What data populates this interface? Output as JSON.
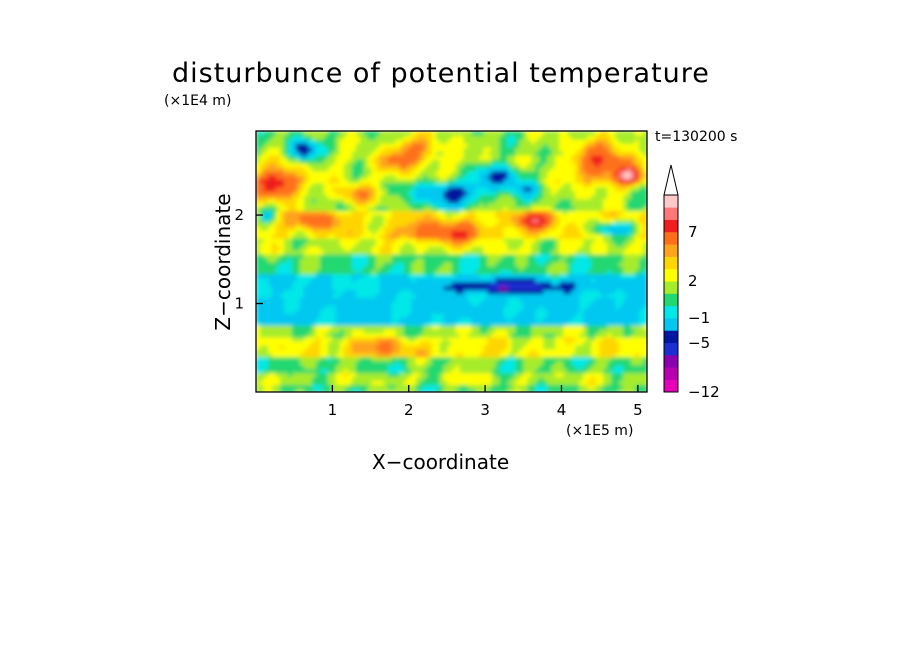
{
  "chart_data": {
    "type": "heatmap",
    "title": "disturbunce of potential temperature",
    "xlabel": "X−coordinate",
    "ylabel": "Z−coordinate",
    "x_unit": "(×1E5 m)",
    "y_unit": "(×1E4 m)",
    "time_label": "t=130200 s",
    "xlim": [
      0,
      5.12
    ],
    "ylim": [
      0,
      2.95
    ],
    "x_ticks": [
      1,
      2,
      3,
      4,
      5
    ],
    "x_tick_labels": [
      "1",
      "2",
      "3",
      "4",
      "5"
    ],
    "y_ticks": [
      1,
      2
    ],
    "y_tick_labels": [
      "1",
      "2"
    ],
    "colorbar": {
      "levels": [
        -12,
        -11,
        -9,
        -7,
        -5,
        -3,
        -1,
        0,
        1,
        2,
        3,
        4,
        5,
        7,
        9,
        11
      ],
      "tick_values": [
        -12,
        -5,
        -1,
        2,
        7
      ],
      "tick_labels": [
        "−12",
        "−5",
        "−1",
        "2",
        "7"
      ],
      "colors": [
        "#e600b8",
        "#b800b0",
        "#8a00b0",
        "#1c2fd0",
        "#0018a0",
        "#00c8f0",
        "#00e8e8",
        "#22d870",
        "#a6ec2a",
        "#ffff00",
        "#ffd500",
        "#ffa31a",
        "#ff6f1a",
        "#ef1f1f",
        "#ff7777",
        "#ffc8c8"
      ],
      "extend": "max"
    },
    "grid": false
  }
}
